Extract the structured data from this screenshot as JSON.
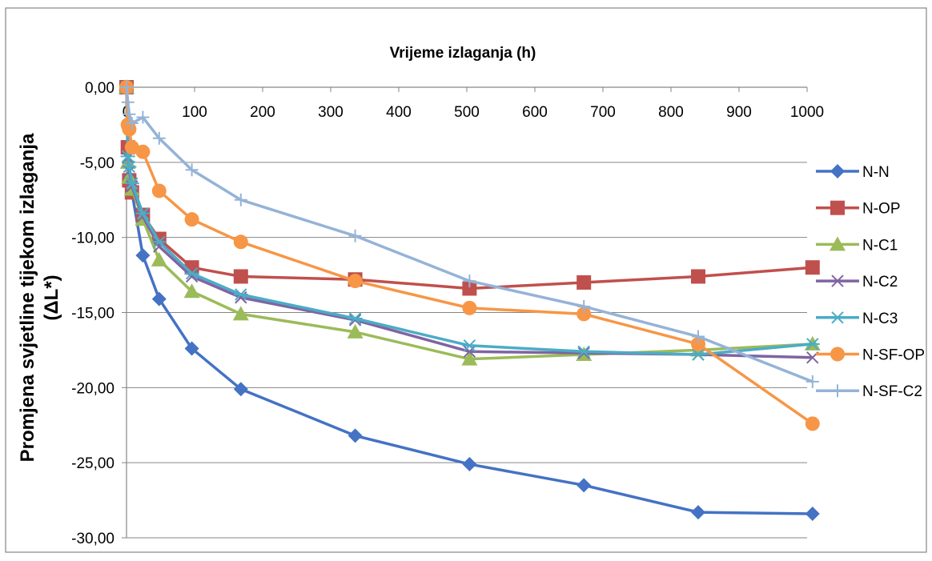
{
  "chart_data": {
    "type": "line",
    "xlabel": "Vrijeme izlaganja (h)",
    "ylabel_line1": "Promjena svjetline tijekom izlaganja",
    "ylabel_line2": "(ΔL*)",
    "xlim": [
      0,
      1000
    ],
    "ylim": [
      -30,
      0
    ],
    "x_axis_position": "top",
    "x_ticks": [
      "0",
      "100",
      "200",
      "300",
      "400",
      "500",
      "600",
      "700",
      "800",
      "900",
      "1000"
    ],
    "y_ticks": [
      "0,00",
      "-5,00",
      "-10,00",
      "-15,00",
      "-20,00",
      "-25,00",
      "-30,00"
    ],
    "grid": "horizontal major",
    "legend_position": "right",
    "series": [
      {
        "name": "N-N",
        "color": "#4472C4",
        "marker": "diamond",
        "x": [
          0,
          2,
          4,
          8,
          24,
          48,
          96,
          168,
          336,
          504,
          672,
          840,
          1008
        ],
        "y": [
          0,
          -4.2,
          -6.3,
          -7.0,
          -11.2,
          -14.1,
          -17.4,
          -20.1,
          -23.2,
          -25.1,
          -26.5,
          -28.3,
          -28.4
        ]
      },
      {
        "name": "N-OP",
        "color": "#C0504D",
        "marker": "square",
        "x": [
          0,
          2,
          4,
          8,
          24,
          48,
          96,
          168,
          336,
          504,
          672,
          840,
          1008
        ],
        "y": [
          0,
          -4.0,
          -6.2,
          -7.0,
          -8.5,
          -10.1,
          -12.0,
          -12.6,
          -12.8,
          -13.4,
          -13.0,
          -12.6,
          -12.0
        ]
      },
      {
        "name": "N-C1",
        "color": "#9BBB59",
        "marker": "triangle",
        "x": [
          0,
          2,
          4,
          8,
          24,
          48,
          96,
          168,
          336,
          504,
          672,
          840,
          1008
        ],
        "y": [
          0,
          -5.0,
          -6.0,
          -6.8,
          -8.8,
          -11.5,
          -13.6,
          -15.1,
          -16.3,
          -18.1,
          -17.8,
          -17.5,
          -17.1
        ]
      },
      {
        "name": "N-C2",
        "color": "#8064A2",
        "marker": "x",
        "x": [
          0,
          2,
          4,
          8,
          24,
          48,
          96,
          168,
          336,
          504,
          672,
          840,
          1008
        ],
        "y": [
          0,
          -4.7,
          -5.6,
          -6.6,
          -8.6,
          -10.6,
          -12.6,
          -14.0,
          -15.5,
          -17.6,
          -17.7,
          -17.8,
          -18.0
        ]
      },
      {
        "name": "N-C3",
        "color": "#4BACC6",
        "marker": "asterisk",
        "x": [
          0,
          2,
          4,
          8,
          24,
          48,
          96,
          168,
          336,
          504,
          672,
          840,
          1008
        ],
        "y": [
          0,
          -4.6,
          -5.3,
          -6.4,
          -8.4,
          -10.3,
          -12.4,
          -13.8,
          -15.4,
          -17.2,
          -17.6,
          -17.8,
          -17.1
        ]
      },
      {
        "name": "N-SF-OP",
        "color": "#F79646",
        "marker": "circle",
        "x": [
          0,
          2,
          4,
          8,
          24,
          48,
          96,
          168,
          336,
          504,
          672,
          840,
          1008
        ],
        "y": [
          0,
          -2.5,
          -2.8,
          -4.0,
          -4.3,
          -6.9,
          -8.8,
          -10.3,
          -12.9,
          -14.7,
          -15.1,
          -17.1,
          -22.4
        ]
      },
      {
        "name": "N-SF-C2",
        "color": "#95B3D7",
        "marker": "plus",
        "x": [
          0,
          2,
          4,
          8,
          24,
          48,
          96,
          168,
          336,
          504,
          672,
          840,
          1008
        ],
        "y": [
          0,
          -1.0,
          -1.8,
          -2.4,
          -2.0,
          -3.4,
          -5.5,
          -7.5,
          -9.9,
          -12.9,
          -14.6,
          -16.6,
          -19.6
        ]
      }
    ]
  }
}
